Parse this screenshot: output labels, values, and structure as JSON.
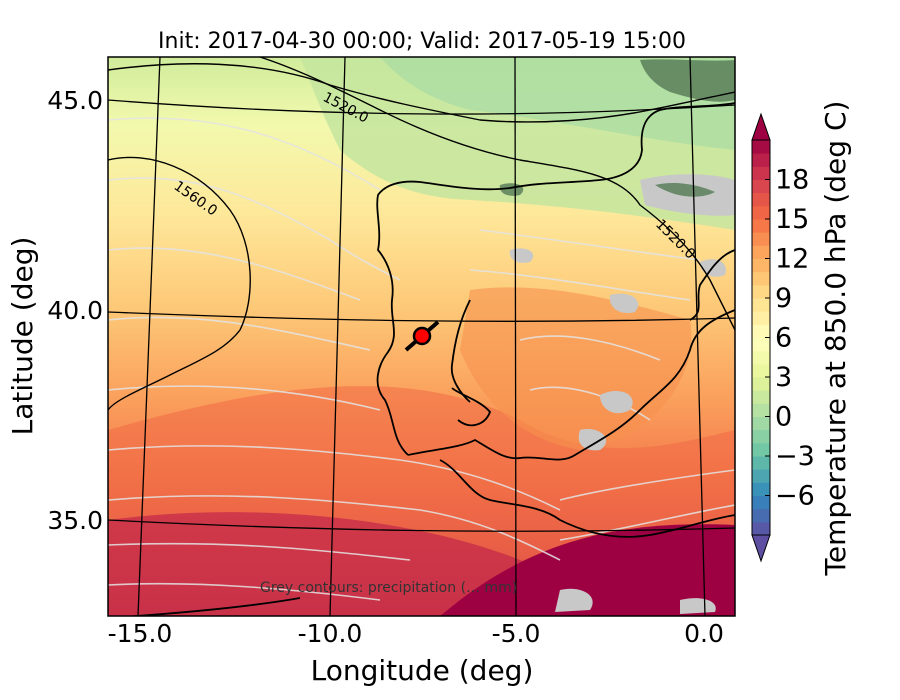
{
  "title": "Init: 2017-04-30 00:00; Valid: 2017-05-19 15:00",
  "xlabel": "Longitude (deg)",
  "ylabel": "Latitude (deg)",
  "x_ticks": [
    "-15.0",
    "-10.0",
    "-5.0",
    "0.0"
  ],
  "y_ticks": [
    "45.0",
    "40.0",
    "35.0"
  ],
  "colorbar": {
    "label": "Temperature at 850.0 hPa (deg C)",
    "ticks": [
      "18",
      "15",
      "12",
      "9",
      "6",
      "3",
      "0",
      "−3",
      "−6"
    ],
    "tick_values": [
      18,
      15,
      12,
      9,
      6,
      3,
      0,
      -3,
      -6
    ],
    "range": [
      -9,
      21
    ],
    "levels": 30,
    "colormap": "Spectral_r"
  },
  "contour_labels": [
    "1520.0",
    "1560.0",
    "1520.0"
  ],
  "note": "Grey contours: precipitation (… mm)",
  "marker": {
    "name": "site-marker",
    "lon": -7.7,
    "lat": 39.3,
    "color": "#ff0000"
  },
  "colors": {
    "coast": "#000000",
    "grid": "#000000",
    "precip": "#c8c8c8",
    "isotherm": "#d8d8d8"
  }
}
